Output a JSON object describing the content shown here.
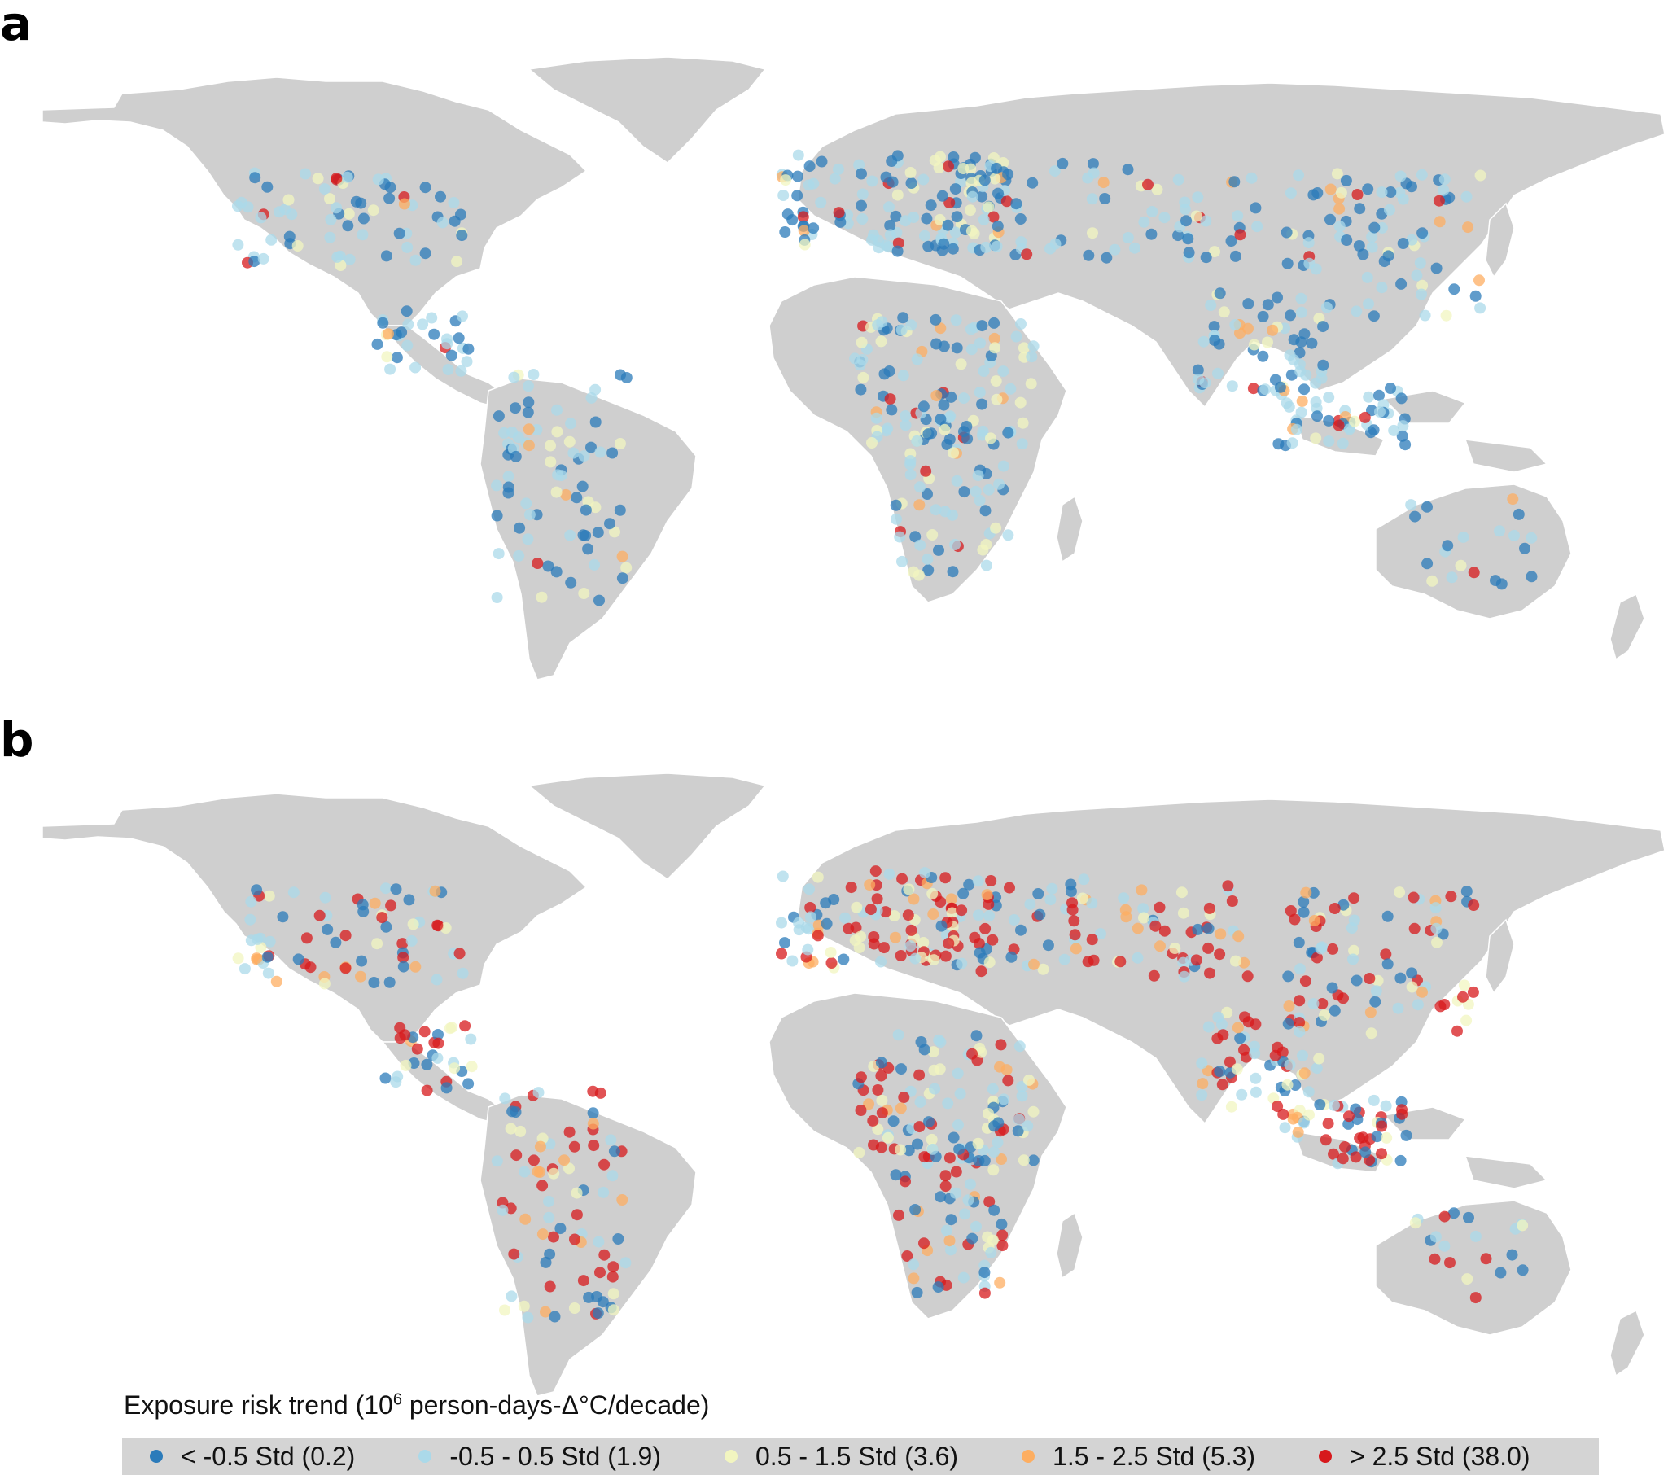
{
  "panels": [
    {
      "letter": "a"
    },
    {
      "letter": "b"
    }
  ],
  "legend": {
    "title_pre": "Exposure risk trend (10",
    "title_sup": "6",
    "title_post": " person-days-Δ°C/decade)",
    "items": [
      {
        "label": "< -0.5 Std (0.2)",
        "color": "#2b7bba"
      },
      {
        "label": "-0.5 - 0.5 Std (1.9)",
        "color": "#abd9e9"
      },
      {
        "label": "0.5 - 1.5 Std (3.6)",
        "color": "#f2f5c0"
      },
      {
        "label": "1.5 - 2.5 Std (5.3)",
        "color": "#fdae61"
      },
      {
        "label": "> 2.5 Std (38.0)",
        "color": "#d7191c"
      }
    ]
  },
  "colors": {
    "land": "#cfcfcf",
    "border": "#ffffff",
    "legend_bg": "#d4d4d4"
  }
}
